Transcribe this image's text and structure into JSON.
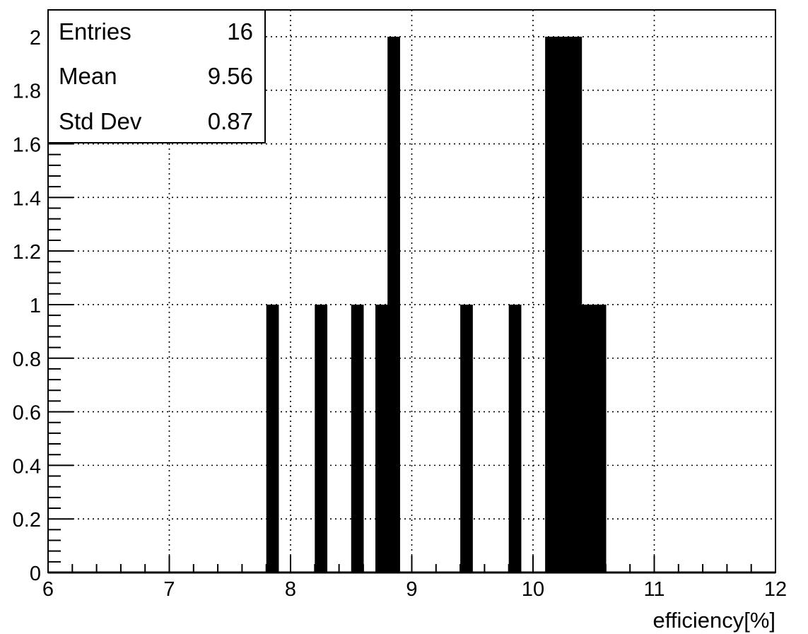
{
  "chart_data": {
    "type": "bar",
    "xlabel": "efficiency[%]",
    "ylabel": "",
    "xlim": [
      6,
      12
    ],
    "ylim": [
      0,
      2.1
    ],
    "grid": true,
    "bin_width": 0.1,
    "x_ticks": [
      "6",
      "7",
      "8",
      "9",
      "10",
      "11",
      "12"
    ],
    "y_ticks": [
      "0",
      "0.2",
      "0.4",
      "0.6",
      "0.8",
      "1",
      "1.2",
      "1.4",
      "1.6",
      "1.8",
      "2"
    ],
    "bars": [
      {
        "x": 7.8,
        "value": 1
      },
      {
        "x": 8.2,
        "value": 1
      },
      {
        "x": 8.5,
        "value": 1
      },
      {
        "x": 8.7,
        "value": 1
      },
      {
        "x": 8.8,
        "value": 2
      },
      {
        "x": 9.4,
        "value": 1
      },
      {
        "x": 9.8,
        "value": 1
      },
      {
        "x": 10.1,
        "value": 2
      },
      {
        "x": 10.2,
        "value": 2
      },
      {
        "x": 10.3,
        "value": 2
      },
      {
        "x": 10.4,
        "value": 1
      },
      {
        "x": 10.5,
        "value": 1
      }
    ],
    "stats_box": {
      "position": "top-left",
      "rows": [
        {
          "label": "Entries",
          "value": "16"
        },
        {
          "label": "Mean",
          "value": "9.56"
        },
        {
          "label": "Std Dev",
          "value": "0.87"
        }
      ]
    },
    "colors": {
      "bars": "#000000",
      "grid": "#000000",
      "background": "#ffffff"
    }
  }
}
